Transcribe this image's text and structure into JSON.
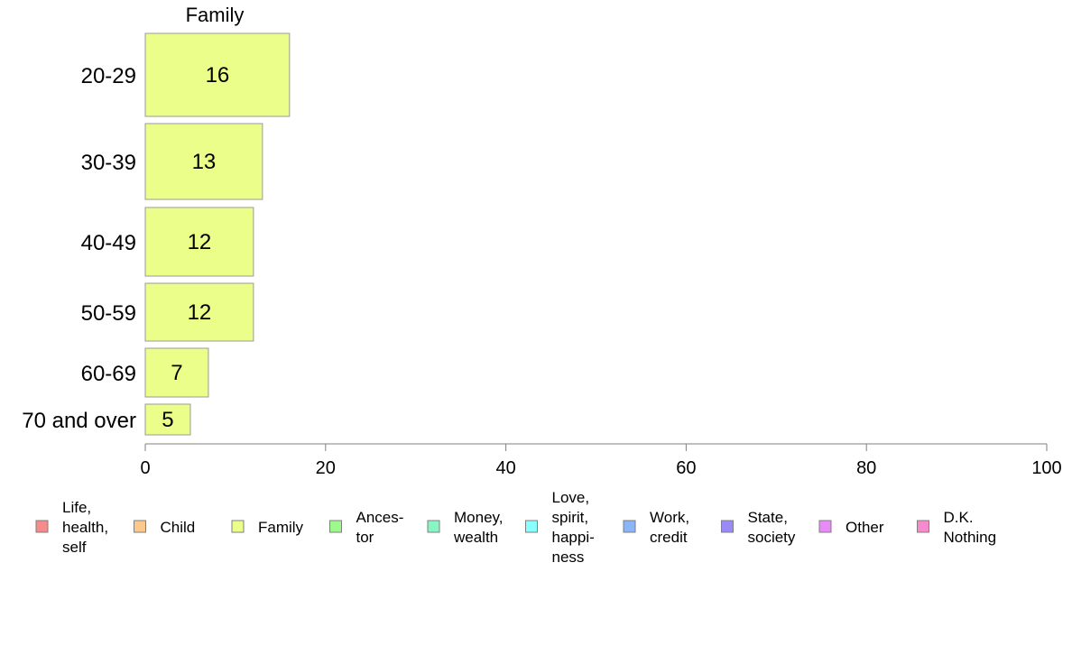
{
  "chart_data": {
    "type": "bar",
    "orientation": "horizontal",
    "title": "Family",
    "categories": [
      "20-29",
      "30-39",
      "40-49",
      "50-59",
      "60-69",
      "70 and over"
    ],
    "series": [
      {
        "name": "Family",
        "color": "#ecfe8a",
        "values": [
          16,
          13,
          12,
          12,
          7,
          5
        ]
      }
    ],
    "xlim": [
      0,
      100
    ],
    "xticks": [
      0,
      20,
      40,
      60,
      80,
      100
    ],
    "grid": false,
    "legend": {
      "placement": "bottom",
      "entries": [
        {
          "label": "Life,\nhealth,\nself",
          "color": "#f78a8a"
        },
        {
          "label": "Child",
          "color": "#fcc98a"
        },
        {
          "label": "Family",
          "color": "#ecfe8a"
        },
        {
          "label": "Ances-\ntor",
          "color": "#9cf98a"
        },
        {
          "label": "Money,\nwealth",
          "color": "#8af5c4"
        },
        {
          "label": "Love,\nspirit,\nhappi-\nness",
          "color": "#8affff"
        },
        {
          "label": "Work,\ncredit",
          "color": "#8ab6f7"
        },
        {
          "label": "State,\nsociety",
          "color": "#9a8af7"
        },
        {
          "label": "Other",
          "color": "#e88af7"
        },
        {
          "label": "D.K.\nNothing",
          "color": "#f78acd"
        }
      ]
    }
  }
}
